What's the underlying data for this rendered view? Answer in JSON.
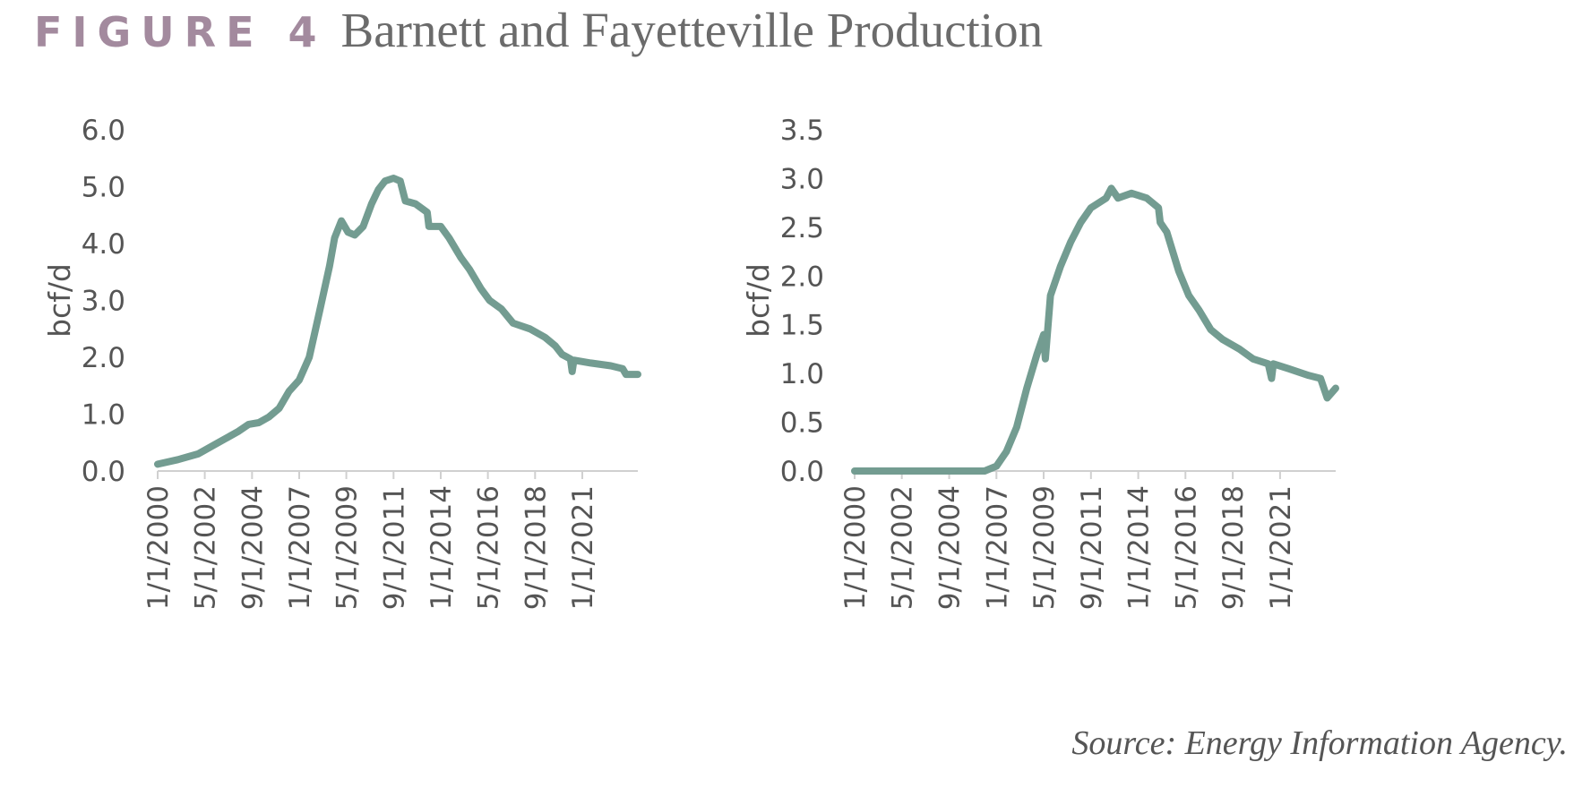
{
  "figure": {
    "label": "FIGURE 4",
    "title": "Barnett and Fayetteville Production",
    "source": "Source: Energy Information Agency."
  },
  "colors": {
    "line": "#739c91",
    "axis": "#d0d0d0",
    "label_accent": "#a38a9e"
  },
  "chart_data": [
    {
      "type": "line",
      "title": "",
      "xlabel": "",
      "ylabel": "bcf/d",
      "ylim": [
        0,
        6
      ],
      "yticks": [
        "0.0",
        "1.0",
        "2.0",
        "3.0",
        "4.0",
        "5.0",
        "6.0"
      ],
      "xlim": [
        "2000-01-01",
        "2023-10-01"
      ],
      "xticks": [
        {
          "label": "1/1/2000",
          "date": "2000-01-01"
        },
        {
          "label": "5/1/2002",
          "date": "2002-05-01"
        },
        {
          "label": "9/1/2004",
          "date": "2004-09-01"
        },
        {
          "label": "1/1/2007",
          "date": "2007-01-01"
        },
        {
          "label": "5/1/2009",
          "date": "2009-05-01"
        },
        {
          "label": "9/1/2011",
          "date": "2011-09-01"
        },
        {
          "label": "1/1/2014",
          "date": "2014-01-01"
        },
        {
          "label": "5/1/2016",
          "date": "2016-05-01"
        },
        {
          "label": "9/1/2018",
          "date": "2018-09-01"
        },
        {
          "label": "1/1/2021",
          "date": "2021-01-01"
        }
      ],
      "grid": false,
      "series": [
        {
          "points": [
            [
              "2000-01-01",
              0.12
            ],
            [
              "2001-01-01",
              0.2
            ],
            [
              "2002-01-01",
              0.3
            ],
            [
              "2003-01-01",
              0.5
            ],
            [
              "2004-01-01",
              0.7
            ],
            [
              "2004-07-01",
              0.82
            ],
            [
              "2005-01-01",
              0.85
            ],
            [
              "2005-07-01",
              0.95
            ],
            [
              "2006-01-01",
              1.1
            ],
            [
              "2006-07-01",
              1.4
            ],
            [
              "2007-01-01",
              1.6
            ],
            [
              "2007-07-01",
              2.0
            ],
            [
              "2008-01-01",
              2.8
            ],
            [
              "2008-07-01",
              3.6
            ],
            [
              "2008-10-01",
              4.1
            ],
            [
              "2009-02-01",
              4.4
            ],
            [
              "2009-06-01",
              4.2
            ],
            [
              "2009-10-01",
              4.15
            ],
            [
              "2010-03-01",
              4.3
            ],
            [
              "2010-08-01",
              4.7
            ],
            [
              "2010-12-01",
              4.95
            ],
            [
              "2011-04-01",
              5.1
            ],
            [
              "2011-09-01",
              5.15
            ],
            [
              "2012-01-01",
              5.1
            ],
            [
              "2012-04-01",
              4.75
            ],
            [
              "2012-10-01",
              4.7
            ],
            [
              "2013-05-01",
              4.55
            ],
            [
              "2013-06-01",
              4.3
            ],
            [
              "2014-01-01",
              4.3
            ],
            [
              "2014-06-01",
              4.1
            ],
            [
              "2015-01-01",
              3.75
            ],
            [
              "2015-06-01",
              3.55
            ],
            [
              "2016-01-01",
              3.2
            ],
            [
              "2016-06-01",
              3.0
            ],
            [
              "2017-01-01",
              2.85
            ],
            [
              "2017-08-01",
              2.6
            ],
            [
              "2018-06-01",
              2.5
            ],
            [
              "2019-03-01",
              2.35
            ],
            [
              "2019-09-01",
              2.2
            ],
            [
              "2020-01-01",
              2.05
            ],
            [
              "2020-06-01",
              1.97
            ],
            [
              "2020-07-01",
              1.75
            ],
            [
              "2020-08-01",
              1.95
            ],
            [
              "2021-06-01",
              1.9
            ],
            [
              "2022-06-01",
              1.85
            ],
            [
              "2023-01-01",
              1.8
            ],
            [
              "2023-03-01",
              1.7
            ],
            [
              "2023-10-01",
              1.7
            ]
          ]
        }
      ]
    },
    {
      "type": "line",
      "title": "",
      "xlabel": "",
      "ylabel": "bcf/d",
      "ylim": [
        0,
        3.5
      ],
      "yticks": [
        "0.0",
        "0.5",
        "1.0",
        "1.5",
        "2.0",
        "2.5",
        "3.0",
        "3.5"
      ],
      "xlim": [
        "2000-01-01",
        "2023-10-01"
      ],
      "xticks": [
        {
          "label": "1/1/2000",
          "date": "2000-01-01"
        },
        {
          "label": "5/1/2002",
          "date": "2002-05-01"
        },
        {
          "label": "9/1/2004",
          "date": "2004-09-01"
        },
        {
          "label": "1/1/2007",
          "date": "2007-01-01"
        },
        {
          "label": "5/1/2009",
          "date": "2009-05-01"
        },
        {
          "label": "9/1/2011",
          "date": "2011-09-01"
        },
        {
          "label": "1/1/2014",
          "date": "2014-01-01"
        },
        {
          "label": "5/1/2016",
          "date": "2016-05-01"
        },
        {
          "label": "9/1/2018",
          "date": "2018-09-01"
        },
        {
          "label": "1/1/2021",
          "date": "2021-01-01"
        }
      ],
      "grid": false,
      "series": [
        {
          "points": [
            [
              "2000-01-01",
              0.0
            ],
            [
              "2006-06-01",
              0.0
            ],
            [
              "2007-01-01",
              0.05
            ],
            [
              "2007-07-01",
              0.2
            ],
            [
              "2008-01-01",
              0.45
            ],
            [
              "2008-07-01",
              0.85
            ],
            [
              "2009-01-01",
              1.2
            ],
            [
              "2009-05-01",
              1.4
            ],
            [
              "2009-06-01",
              1.15
            ],
            [
              "2009-09-01",
              1.8
            ],
            [
              "2010-03-01",
              2.1
            ],
            [
              "2010-09-01",
              2.35
            ],
            [
              "2011-03-01",
              2.55
            ],
            [
              "2011-09-01",
              2.7
            ],
            [
              "2012-06-01",
              2.8
            ],
            [
              "2012-09-01",
              2.9
            ],
            [
              "2013-01-01",
              2.8
            ],
            [
              "2013-09-01",
              2.85
            ],
            [
              "2014-06-01",
              2.8
            ],
            [
              "2015-01-01",
              2.7
            ],
            [
              "2015-02-01",
              2.55
            ],
            [
              "2015-06-01",
              2.45
            ],
            [
              "2016-01-01",
              2.05
            ],
            [
              "2016-07-01",
              1.8
            ],
            [
              "2017-01-01",
              1.65
            ],
            [
              "2017-08-01",
              1.45
            ],
            [
              "2018-03-01",
              1.35
            ],
            [
              "2019-01-01",
              1.25
            ],
            [
              "2019-09-01",
              1.15
            ],
            [
              "2020-06-01",
              1.1
            ],
            [
              "2020-08-01",
              0.95
            ],
            [
              "2020-09-01",
              1.1
            ],
            [
              "2021-06-01",
              1.05
            ],
            [
              "2022-06-01",
              0.98
            ],
            [
              "2023-01-01",
              0.95
            ],
            [
              "2023-05-01",
              0.75
            ],
            [
              "2023-10-01",
              0.85
            ]
          ]
        }
      ]
    }
  ]
}
